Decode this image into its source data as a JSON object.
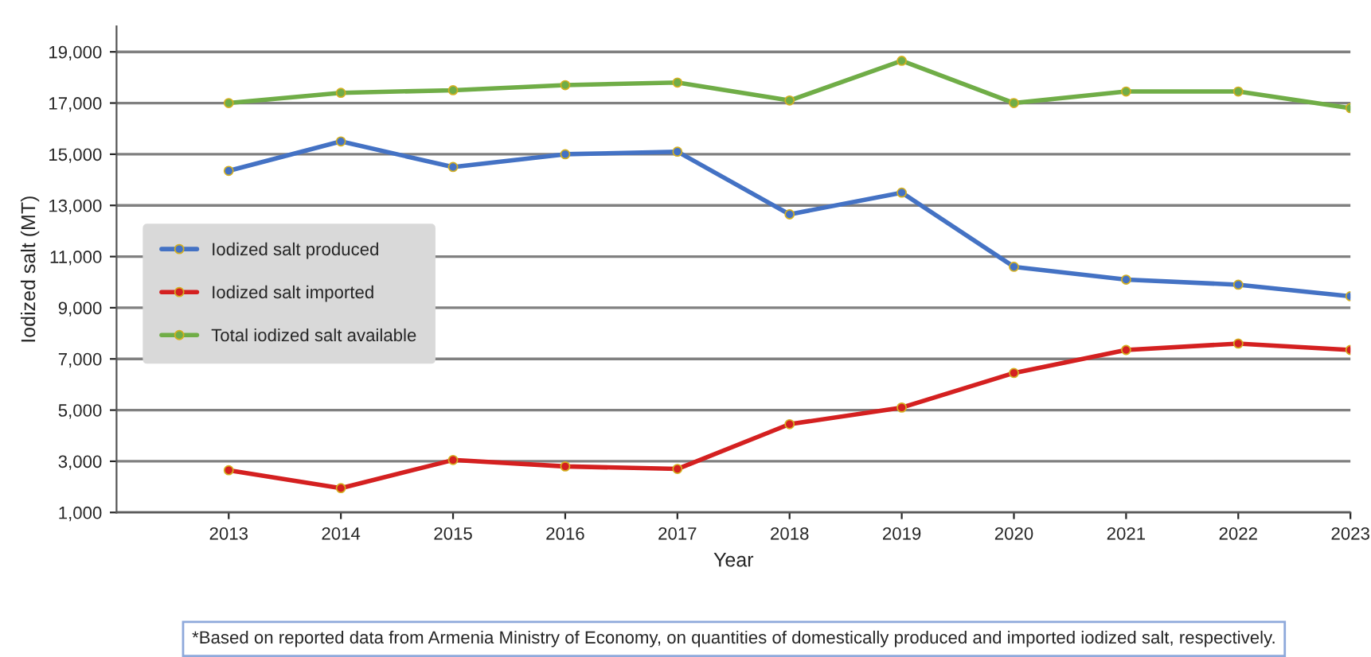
{
  "chart_data": {
    "type": "line",
    "xlabel": "Year",
    "ylabel": "Iodized salt (MT)",
    "x": [
      2013,
      2014,
      2015,
      2016,
      2017,
      2018,
      2019,
      2020,
      2021,
      2022,
      2023
    ],
    "series": [
      {
        "name": "Iodized salt produced",
        "color": "#4472c4",
        "values": [
          14350,
          15500,
          14500,
          15000,
          15100,
          12650,
          13500,
          10600,
          10100,
          9900,
          9450
        ]
      },
      {
        "name": "Iodized salt imported",
        "color": "#d42020",
        "values": [
          2650,
          1950,
          3050,
          2800,
          2700,
          4450,
          5100,
          6450,
          7350,
          7600,
          7350
        ]
      },
      {
        "name": "Total iodized salt available",
        "color": "#70ad47",
        "values": [
          17000,
          17400,
          17500,
          17700,
          17800,
          17100,
          18650,
          17000,
          17450,
          17450,
          16800
        ]
      }
    ],
    "xlim": [
      2012,
      2023
    ],
    "xticks": [
      2013,
      2014,
      2015,
      2016,
      2017,
      2018,
      2019,
      2020,
      2021,
      2022,
      2023
    ],
    "ylim": [
      1000,
      20000
    ],
    "yticks": [
      {
        "value": 1000,
        "label": "1,000"
      },
      {
        "value": 3000,
        "label": "3,000"
      },
      {
        "value": 5000,
        "label": "5,000"
      },
      {
        "value": 7000,
        "label": "7,000"
      },
      {
        "value": 9000,
        "label": "9,000"
      },
      {
        "value": 11000,
        "label": "11,000"
      },
      {
        "value": 13000,
        "label": "13,000"
      },
      {
        "value": 15000,
        "label": "15,000"
      },
      {
        "value": 17000,
        "label": "17,000"
      },
      {
        "value": 19000,
        "label": "19,000"
      }
    ],
    "grid": "y",
    "legend": "left",
    "marker": "circle",
    "line_style": "solid",
    "annotations": [
      "*Based on reported data from Armenia Ministry of Economy, on quantities of domestically produced and imported iodized salt, respectively."
    ]
  }
}
